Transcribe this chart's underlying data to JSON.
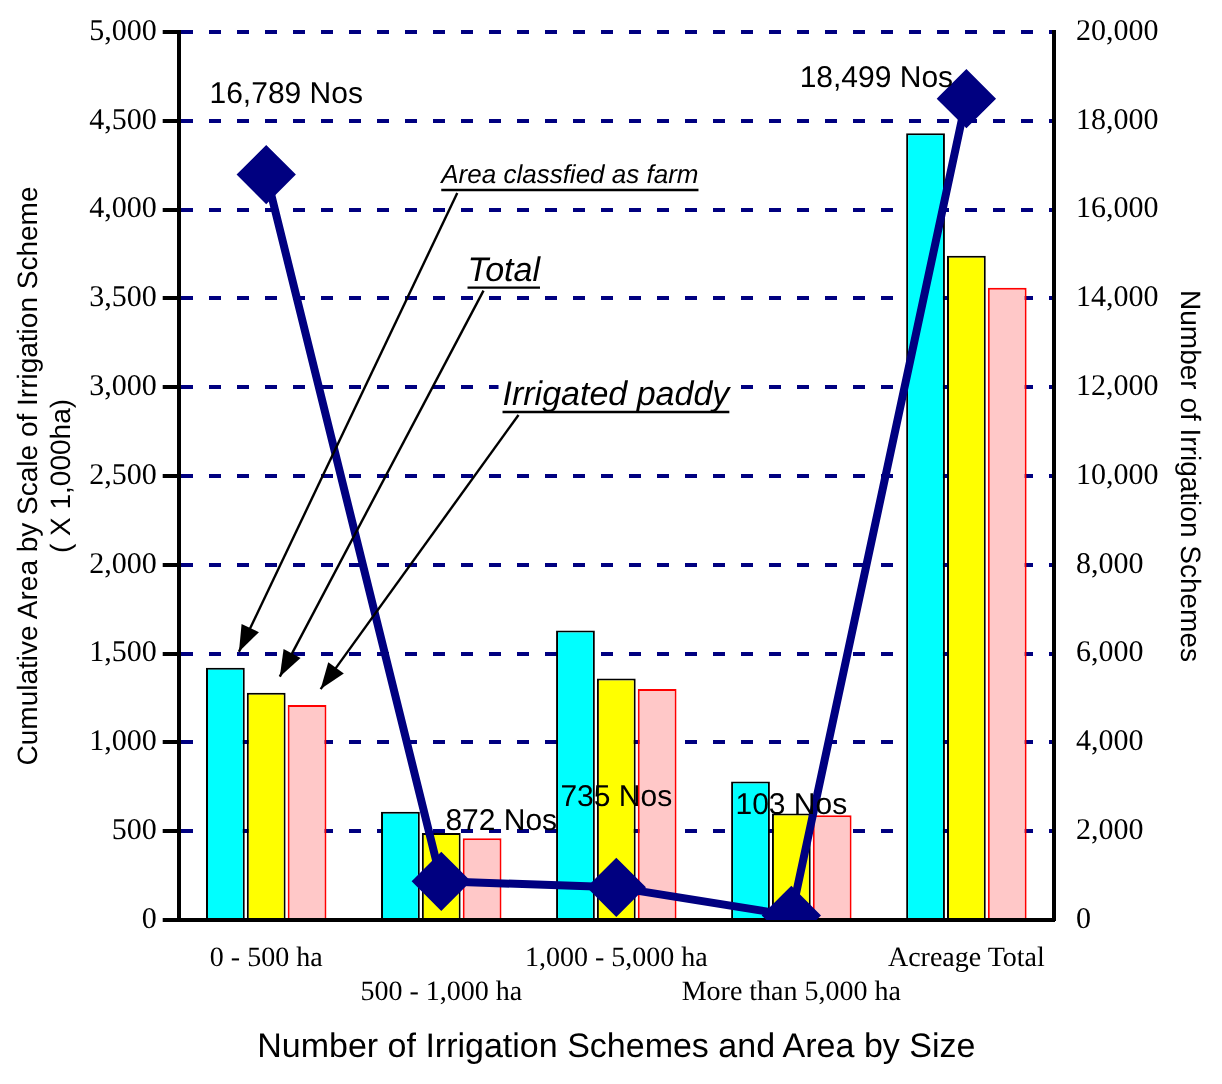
{
  "chart_data": {
    "type": "bar",
    "xlabel": "Number of Irrigation Schemes and Area by Size",
    "ylabel": "Cumulative Area by Scale of Irrigation Scheme\n( X 1,000ha)",
    "y2label": "Number of Irrigation Schemes",
    "categories": [
      "0 - 500 ha",
      "500 - 1,000 ha",
      "1,000 - 5,000 ha",
      "More than 5,000 ha",
      "Acreage Total"
    ],
    "series": [
      {
        "name": "Area classfied as farm",
        "color": "#00ffff",
        "values": [
          1420,
          610,
          1630,
          780,
          4430
        ]
      },
      {
        "name": "Total",
        "color": "#ffff00",
        "values": [
          1280,
          490,
          1360,
          600,
          3740
        ]
      },
      {
        "name": "Irrigated paddy",
        "color": "#ffc8c8",
        "values": [
          1210,
          460,
          1300,
          590,
          3560
        ]
      },
      {
        "type": "line",
        "axis": "y2",
        "color": "#000080",
        "marker": "diamond",
        "values": [
          16789,
          872,
          735,
          103,
          18499
        ],
        "value_labels": [
          "16,789 Nos",
          "872 Nos",
          "735 Nos",
          "103 Nos",
          "18,499 Nos"
        ]
      }
    ],
    "ylim": [
      0,
      5000
    ],
    "yticks": [
      0,
      500,
      {
        "value": 1000,
        "label": "1,000"
      },
      {
        "value": 1500,
        "label": "1,500"
      },
      {
        "value": 2000,
        "label": "2,000"
      },
      {
        "value": 2500,
        "label": "2,500"
      },
      {
        "value": 3000,
        "label": "3,000"
      },
      {
        "value": 3500,
        "label": "3,500"
      },
      {
        "value": 4000,
        "label": "4,000"
      },
      {
        "value": 4500,
        "label": "4,500"
      },
      {
        "value": 5000,
        "label": "5,000"
      }
    ],
    "y2lim": [
      0,
      20000
    ],
    "y2ticks": [
      0,
      {
        "value": 2000,
        "label": "2,000"
      },
      {
        "value": 4000,
        "label": "4,000"
      },
      {
        "value": 6000,
        "label": "6,000"
      },
      {
        "value": 8000,
        "label": "8,000"
      },
      {
        "value": 10000,
        "label": "10,000"
      },
      {
        "value": 12000,
        "label": "12,000"
      },
      {
        "value": 14000,
        "label": "14,000"
      },
      {
        "value": 16000,
        "label": "16,000"
      },
      {
        "value": 18000,
        "label": "18,000"
      },
      {
        "value": 20000,
        "label": "20,000"
      }
    ],
    "grid": "y",
    "legend": false
  }
}
